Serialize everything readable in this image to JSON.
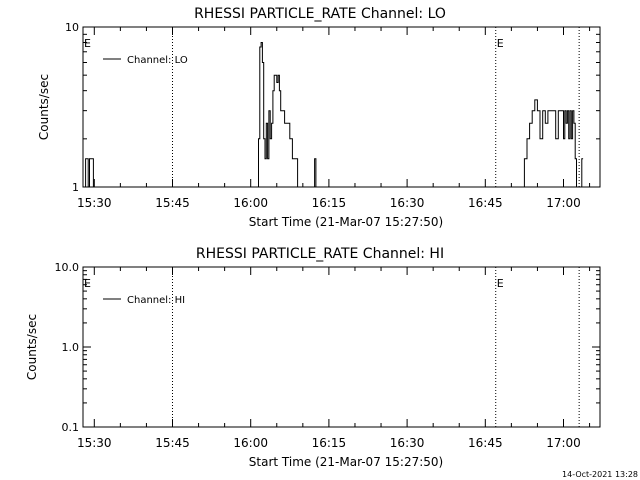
{
  "chart_data": [
    {
      "type": "line",
      "title": "RHESSI PARTICLE_RATE Channel: LO",
      "xlabel": "Start Time (21-Mar-07 15:27:50)",
      "ylabel": "Counts/sec",
      "yscale": "log",
      "ylim": [
        1,
        10
      ],
      "ytick_labels": [
        "1",
        "10"
      ],
      "xlim": [
        "15:27:50",
        "17:07:00"
      ],
      "xtick_labels": [
        "15:30",
        "15:45",
        "16:00",
        "16:15",
        "16:30",
        "16:45",
        "17:00"
      ],
      "legend": {
        "placement": "top-left",
        "entries": [
          "Channel: LO"
        ]
      },
      "event_markers": [
        {
          "time": "15:45:00",
          "label": ""
        },
        {
          "time": "16:47:00",
          "label": "E"
        },
        {
          "time": "17:03:00",
          "label": ""
        }
      ],
      "edge_label": "E",
      "grid": false,
      "series": [
        {
          "name": "Channel: LO",
          "x": [
            "15:28:05",
            "15:28:20",
            "15:28:35",
            "15:28:50",
            "15:29:05",
            "15:29:20",
            "15:29:35",
            "15:29:50",
            "15:30:05",
            "15:30:20",
            "16:01:00",
            "16:01:30",
            "16:01:45",
            "16:02:00",
            "16:02:15",
            "16:02:30",
            "16:02:45",
            "16:03:00",
            "16:03:15",
            "16:03:30",
            "16:03:45",
            "16:04:00",
            "16:04:15",
            "16:04:30",
            "16:04:45",
            "16:05:00",
            "16:05:15",
            "16:05:30",
            "16:05:45",
            "16:06:00",
            "16:06:30",
            "16:07:00",
            "16:07:30",
            "16:08:00",
            "16:08:30",
            "16:09:00",
            "16:09:30",
            "16:10:00",
            "16:10:30",
            "16:11:00",
            "16:12:00",
            "16:12:15",
            "16:12:30",
            "16:52:00",
            "16:52:30",
            "16:53:00",
            "16:53:30",
            "16:54:00",
            "16:54:30",
            "16:55:00",
            "16:55:30",
            "16:56:00",
            "16:56:30",
            "16:57:00",
            "16:57:30",
            "16:58:00",
            "16:58:30",
            "16:59:00",
            "16:59:30",
            "17:00:00",
            "17:00:15",
            "17:00:30",
            "17:00:45",
            "17:01:00",
            "17:01:15",
            "17:01:30",
            "17:01:45",
            "17:02:00",
            "17:02:15",
            "17:02:30",
            "17:02:45",
            "17:03:00",
            "17:03:30"
          ],
          "y": [
            1,
            1.5,
            1.5,
            1,
            1.5,
            1.5,
            1.5,
            1,
            1,
            1,
            1,
            2,
            7.5,
            8,
            6,
            2,
            1.5,
            2.5,
            1.5,
            3,
            2,
            2.5,
            4,
            5,
            5,
            4.5,
            5,
            4,
            3,
            3,
            2.5,
            2.5,
            2,
            1.5,
            1.5,
            1,
            1,
            1,
            1,
            1,
            1,
            1.5,
            1,
            1,
            1.5,
            2,
            2.5,
            3,
            3.5,
            3,
            2,
            3,
            2.5,
            3,
            3,
            3,
            2,
            3,
            3,
            2,
            3,
            2.5,
            3,
            2,
            3,
            2,
            3,
            2.5,
            1.5,
            1,
            1,
            1,
            1.5
          ]
        }
      ]
    },
    {
      "type": "line",
      "title": "RHESSI PARTICLE_RATE Channel: HI",
      "xlabel": "Start Time (21-Mar-07 15:27:50)",
      "ylabel": "Counts/sec",
      "yscale": "log",
      "ylim": [
        0.1,
        10
      ],
      "ytick_labels": [
        "0.1",
        "1.0",
        "10.0"
      ],
      "xlim": [
        "15:27:50",
        "17:07:00"
      ],
      "xtick_labels": [
        "15:30",
        "15:45",
        "16:00",
        "16:15",
        "16:30",
        "16:45",
        "17:00"
      ],
      "legend": {
        "placement": "top-left",
        "entries": [
          "Channel: HI"
        ]
      },
      "event_markers": [
        {
          "time": "15:45:00",
          "label": ""
        },
        {
          "time": "16:47:00",
          "label": "E"
        },
        {
          "time": "17:03:00",
          "label": ""
        }
      ],
      "edge_label": "E",
      "grid": false,
      "series": [
        {
          "name": "Channel: HI",
          "x": [],
          "y": []
        }
      ]
    }
  ],
  "footer": {
    "timestamp": "14-Oct-2021 13:28"
  },
  "colors": {
    "line": "#000000",
    "background": "#ffffff"
  }
}
